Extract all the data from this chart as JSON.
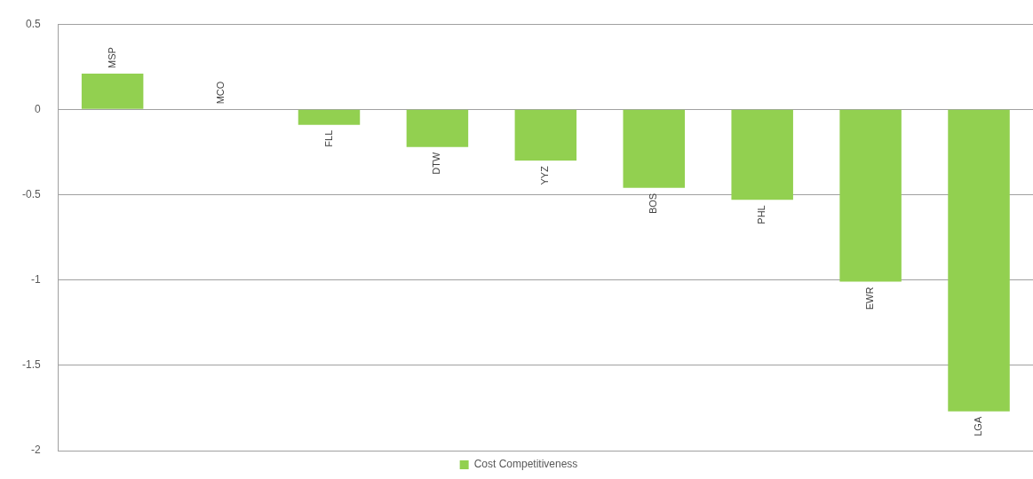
{
  "chart_data": {
    "type": "bar",
    "categories": [
      "MSP",
      "MCO",
      "FLL",
      "DTW",
      "YYZ",
      "BOS",
      "PHL",
      "EWR",
      "LGA"
    ],
    "series": [
      {
        "name": "Cost Competitiveness",
        "color": "#92d050",
        "values": [
          0.21,
          0,
          -0.09,
          -0.22,
          -0.3,
          -0.46,
          -0.53,
          -1.01,
          -1.77
        ]
      }
    ],
    "ylim": [
      -2,
      0.5
    ],
    "yticks": [
      -2,
      -1.5,
      -1,
      -0.5,
      0,
      0.5
    ],
    "grid": "y",
    "legend": "bottom"
  }
}
